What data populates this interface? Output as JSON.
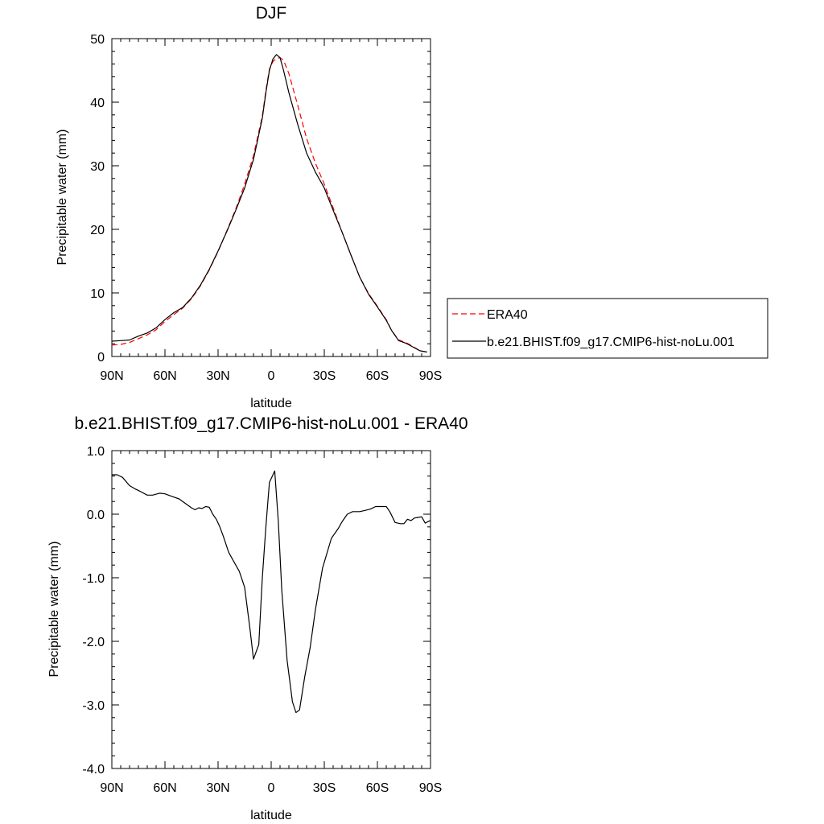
{
  "chart_data": [
    {
      "type": "line",
      "title": "DJF",
      "xlabel": "latitude",
      "ylabel": "Precipitable water (mm)",
      "xlim": [
        -90,
        90
      ],
      "ylim": [
        0,
        50
      ],
      "x_ticks": [
        {
          "value": -90,
          "label": "90N"
        },
        {
          "value": -60,
          "label": "60N"
        },
        {
          "value": -30,
          "label": "30N"
        },
        {
          "value": 0,
          "label": "0"
        },
        {
          "value": 30,
          "label": "30S"
        },
        {
          "value": 60,
          "label": "60S"
        },
        {
          "value": 90,
          "label": "90S"
        }
      ],
      "y_ticks": [
        {
          "value": 0,
          "label": "0"
        },
        {
          "value": 10,
          "label": "10"
        },
        {
          "value": 20,
          "label": "20"
        },
        {
          "value": 30,
          "label": "30"
        },
        {
          "value": 40,
          "label": "40"
        },
        {
          "value": 50,
          "label": "50"
        }
      ],
      "legend": {
        "placement": "right",
        "entries": [
          {
            "label": "ERA40",
            "color": "#ff0000",
            "dash": true
          },
          {
            "label": "b.e21.BHIST.f09_g17.CMIP6-hist-noLu.001",
            "color": "#000000",
            "dash": false
          }
        ]
      },
      "series": [
        {
          "name": "ERA40",
          "color": "#ff0000",
          "dash": true,
          "points": [
            [
              -90,
              1.8
            ],
            [
              -85,
              1.9
            ],
            [
              -80,
              2.2
            ],
            [
              -75,
              2.8
            ],
            [
              -70,
              3.4
            ],
            [
              -65,
              4.2
            ],
            [
              -60,
              5.5
            ],
            [
              -55,
              6.6
            ],
            [
              -50,
              7.6
            ],
            [
              -45,
              9.1
            ],
            [
              -40,
              11.1
            ],
            [
              -35,
              13.6
            ],
            [
              -30,
              16.5
            ],
            [
              -25,
              19.8
            ],
            [
              -20,
              23.2
            ],
            [
              -15,
              27.1
            ],
            [
              -10,
              31.6
            ],
            [
              -5,
              37.8
            ],
            [
              -3,
              41.8
            ],
            [
              -1,
              45.2
            ],
            [
              1,
              46.4
            ],
            [
              3,
              46.9
            ],
            [
              5,
              47.0
            ],
            [
              7,
              46.6
            ],
            [
              10,
              44.5
            ],
            [
              15,
              39.5
            ],
            [
              20,
              34.3
            ],
            [
              25,
              30.4
            ],
            [
              30,
              27.1
            ],
            [
              35,
              23.4
            ],
            [
              40,
              19.6
            ],
            [
              45,
              16.0
            ],
            [
              50,
              12.5
            ],
            [
              55,
              9.9
            ],
            [
              60,
              7.9
            ],
            [
              65,
              5.8
            ],
            [
              68,
              4.1
            ],
            [
              72,
              2.6
            ],
            [
              76,
              2.2
            ],
            [
              80,
              1.6
            ],
            [
              84,
              0.9
            ],
            [
              88,
              0.7
            ]
          ]
        },
        {
          "name": "b.e21.BHIST.f09_g17.CMIP6-hist-noLu.001",
          "color": "#000000",
          "dash": false,
          "points": [
            [
              -90,
              2.4
            ],
            [
              -85,
              2.5
            ],
            [
              -80,
              2.6
            ],
            [
              -75,
              3.2
            ],
            [
              -70,
              3.7
            ],
            [
              -65,
              4.5
            ],
            [
              -60,
              5.8
            ],
            [
              -55,
              6.9
            ],
            [
              -50,
              7.7
            ],
            [
              -45,
              9.2
            ],
            [
              -40,
              11.2
            ],
            [
              -35,
              13.7
            ],
            [
              -30,
              16.6
            ],
            [
              -25,
              19.7
            ],
            [
              -20,
              23.0
            ],
            [
              -15,
              26.5
            ],
            [
              -10,
              31.0
            ],
            [
              -5,
              37.5
            ],
            [
              -3,
              41.5
            ],
            [
              -1,
              45.0
            ],
            [
              1,
              46.8
            ],
            [
              3,
              47.5
            ],
            [
              5,
              47.0
            ],
            [
              7,
              45.0
            ],
            [
              10,
              41.5
            ],
            [
              15,
              36.5
            ],
            [
              20,
              32.0
            ],
            [
              25,
              29.0
            ],
            [
              30,
              26.5
            ],
            [
              35,
              23.0
            ],
            [
              40,
              19.6
            ],
            [
              45,
              16.0
            ],
            [
              50,
              12.5
            ],
            [
              55,
              9.8
            ],
            [
              60,
              7.8
            ],
            [
              65,
              5.7
            ],
            [
              68,
              4.1
            ],
            [
              72,
              2.5
            ],
            [
              76,
              2.1
            ],
            [
              80,
              1.5
            ],
            [
              84,
              0.9
            ],
            [
              88,
              0.7
            ]
          ]
        }
      ]
    },
    {
      "type": "line",
      "title": "b.e21.BHIST.f09_g17.CMIP6-hist-noLu.001 - ERA40",
      "xlabel": "latitude",
      "ylabel": "Precipitable water (mm)",
      "xlim": [
        -90,
        90
      ],
      "ylim": [
        -4,
        1
      ],
      "x_ticks": [
        {
          "value": -90,
          "label": "90N"
        },
        {
          "value": -60,
          "label": "60N"
        },
        {
          "value": -30,
          "label": "30N"
        },
        {
          "value": 0,
          "label": "0"
        },
        {
          "value": 30,
          "label": "30S"
        },
        {
          "value": 60,
          "label": "60S"
        },
        {
          "value": 90,
          "label": "90S"
        }
      ],
      "y_ticks": [
        {
          "value": -4,
          "label": "-4.0"
        },
        {
          "value": -3,
          "label": "-3.0"
        },
        {
          "value": -2,
          "label": "-2.0"
        },
        {
          "value": -1,
          "label": "-1.0"
        },
        {
          "value": 0,
          "label": "0.0"
        },
        {
          "value": 1,
          "label": "1.0"
        }
      ],
      "series": [
        {
          "name": "",
          "color": "#000000",
          "dash": false,
          "points": [
            [
              -90,
              0.62
            ],
            [
              -87,
              0.62
            ],
            [
              -84,
              0.58
            ],
            [
              -80,
              0.45
            ],
            [
              -77,
              0.4
            ],
            [
              -74,
              0.36
            ],
            [
              -70,
              0.3
            ],
            [
              -67,
              0.3
            ],
            [
              -63,
              0.33
            ],
            [
              -60,
              0.32
            ],
            [
              -56,
              0.28
            ],
            [
              -52,
              0.24
            ],
            [
              -48,
              0.16
            ],
            [
              -45,
              0.1
            ],
            [
              -43,
              0.07
            ],
            [
              -41,
              0.1
            ],
            [
              -39,
              0.09
            ],
            [
              -37,
              0.12
            ],
            [
              -35,
              0.11
            ],
            [
              -33,
              0.0
            ],
            [
              -31,
              -0.08
            ],
            [
              -29,
              -0.2
            ],
            [
              -27,
              -0.35
            ],
            [
              -24,
              -0.6
            ],
            [
              -21,
              -0.75
            ],
            [
              -18,
              -0.9
            ],
            [
              -15,
              -1.15
            ],
            [
              -12,
              -1.8
            ],
            [
              -10,
              -2.28
            ],
            [
              -7,
              -2.05
            ],
            [
              -5,
              -1.0
            ],
            [
              -3,
              -0.2
            ],
            [
              -1,
              0.5
            ],
            [
              2,
              0.68
            ],
            [
              4,
              -0.1
            ],
            [
              6,
              -1.2
            ],
            [
              9,
              -2.3
            ],
            [
              12,
              -2.95
            ],
            [
              14,
              -3.12
            ],
            [
              16,
              -3.08
            ],
            [
              19,
              -2.55
            ],
            [
              22,
              -2.1
            ],
            [
              25,
              -1.5
            ],
            [
              29,
              -0.85
            ],
            [
              34,
              -0.38
            ],
            [
              38,
              -0.22
            ],
            [
              40,
              -0.12
            ],
            [
              43,
              0.0
            ],
            [
              46,
              0.04
            ],
            [
              50,
              0.04
            ],
            [
              53,
              0.06
            ],
            [
              56,
              0.08
            ],
            [
              59,
              0.12
            ],
            [
              62,
              0.12
            ],
            [
              65,
              0.12
            ],
            [
              67,
              0.04
            ],
            [
              70,
              -0.13
            ],
            [
              73,
              -0.15
            ],
            [
              75,
              -0.15
            ],
            [
              77,
              -0.08
            ],
            [
              79,
              -0.1
            ],
            [
              81,
              -0.06
            ],
            [
              83,
              -0.05
            ],
            [
              85,
              -0.04
            ],
            [
              87,
              -0.14
            ],
            [
              89,
              -0.11
            ],
            [
              90,
              -0.1
            ]
          ]
        }
      ]
    }
  ]
}
